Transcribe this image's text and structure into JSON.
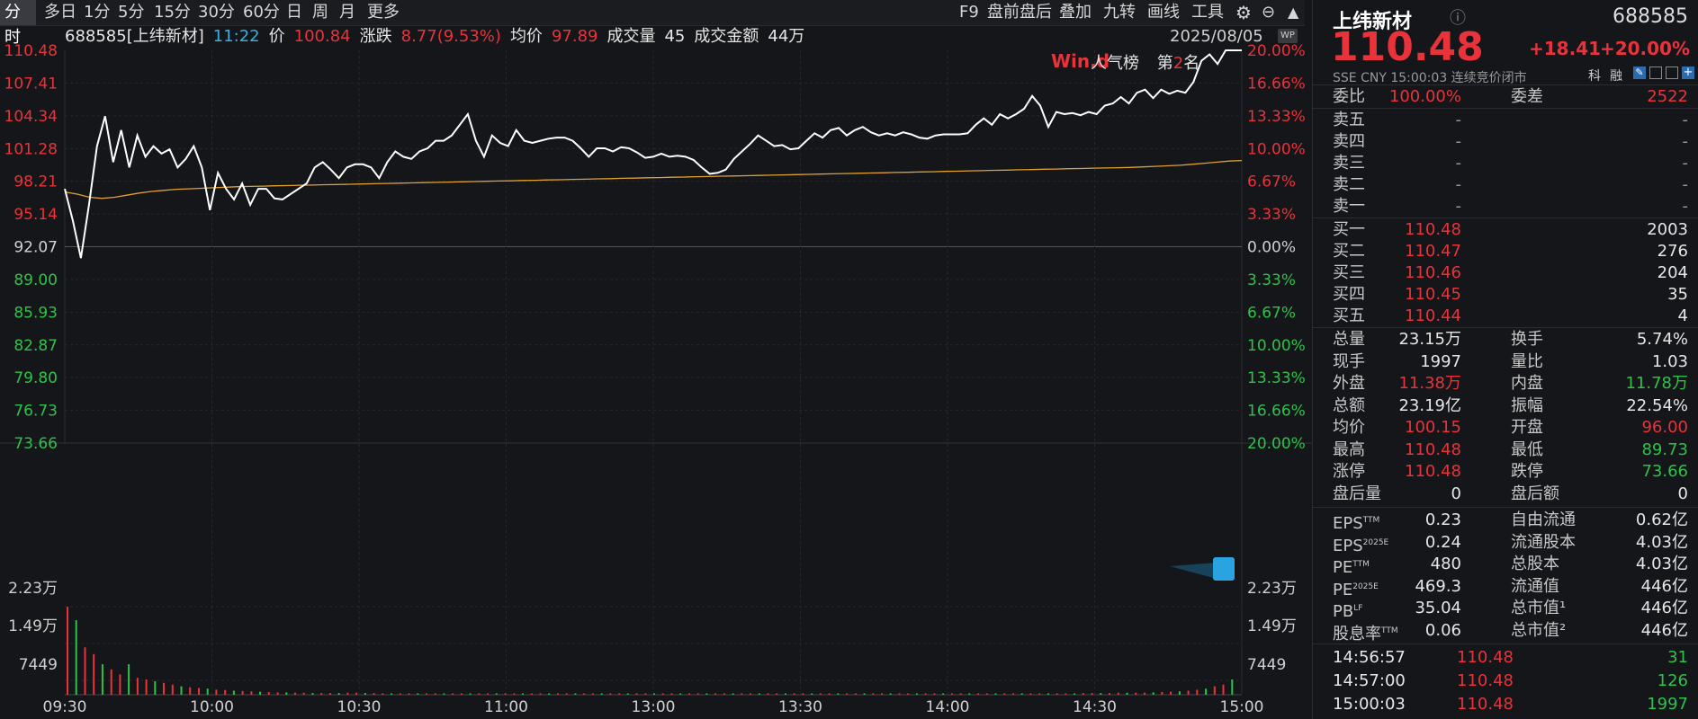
{
  "toolbar": {
    "tabs": [
      "分时",
      "多日",
      "1分",
      "5分",
      "15分",
      "30分",
      "60分",
      "日",
      "周",
      "月",
      "更多"
    ],
    "tools": [
      "F9",
      "盘前盘后",
      "叠加",
      "九转",
      "画线",
      "工具"
    ]
  },
  "info": {
    "code_name": "688585[上纬新材]",
    "time": "11:22",
    "price_label": "价",
    "price": "100.84",
    "change_label": "涨跌",
    "change": "8.77(9.53%)",
    "avg_label": "均价",
    "avg": "97.89",
    "vol_label": "成交量",
    "vol": "45",
    "amt_label": "成交金额",
    "amt": "44万"
  },
  "chart_date": "2025/08/05",
  "popularity": {
    "brand": "Win.d",
    "label": "人气榜",
    "rank_prefix": "第",
    "rank": "2",
    "rank_suffix": "名"
  },
  "chart_data": {
    "type": "line",
    "ylim": [
      73.66,
      110.48
    ],
    "prev_close": 92.07,
    "price_ticks_up": [
      "110.48",
      "107.41",
      "104.34",
      "101.28",
      "98.21",
      "95.14"
    ],
    "price_tick_mid": "92.07",
    "price_ticks_down": [
      "89.00",
      "85.93",
      "82.87",
      "79.80",
      "76.73",
      "73.66"
    ],
    "pct_ticks_up": [
      "20.00%",
      "16.66%",
      "13.33%",
      "10.00%",
      "6.67%",
      "3.33%"
    ],
    "pct_tick_mid": "0.00%",
    "pct_ticks_down": [
      "3.33%",
      "6.67%",
      "10.00%",
      "13.33%",
      "16.66%",
      "20.00%"
    ],
    "volume_ticks": [
      "2.23万",
      "1.49万",
      "7449"
    ],
    "vol_ylim": [
      0,
      30000
    ],
    "x_labels": [
      "09:30",
      "10:00",
      "10:30",
      "11:00",
      "13:00",
      "13:30",
      "14:00",
      "14:30",
      "15:00"
    ],
    "series": [
      {
        "values": [
          97.5,
          94.5,
          91,
          96,
          101.5,
          104.3,
          100,
          103,
          99.5,
          102.5,
          100.5,
          101.5,
          100.8,
          101.2,
          99.5,
          100.3,
          101.5,
          99.5,
          95.5,
          99,
          97.5,
          96.5,
          98,
          96,
          97.5,
          97.5,
          96.6,
          96.5,
          97,
          97.5,
          98,
          99.5,
          100,
          99.3,
          98.5,
          99.5,
          99.8,
          99.8,
          99.5,
          98.5,
          100,
          101,
          100.5,
          100.3,
          101,
          101.3,
          102,
          102,
          102.5,
          103.5,
          104.5,
          102,
          100.5,
          102.5,
          101.8,
          101.5,
          103,
          102,
          101.8,
          102,
          102.2,
          102.3,
          102.3,
          102,
          101.3,
          100.5,
          101.3,
          101.3,
          101,
          101.4,
          101.3,
          100.9,
          100.4,
          100.5,
          100.8,
          100.5,
          100.6,
          100.5,
          100.2,
          99.5,
          98.9,
          99,
          99.3,
          100.3,
          101,
          101.7,
          102.5,
          102,
          101.5,
          101.6,
          101.2,
          101.3,
          102,
          102.7,
          102.3,
          103,
          103.2,
          102.5,
          103,
          103.3,
          102.8,
          102.5,
          102.7,
          102.5,
          102.8,
          102.6,
          102.3,
          102.2,
          102.5,
          102.6,
          102.6,
          102.6,
          102.7,
          103.5,
          104.1,
          103.5,
          104.5,
          104.1,
          104.5,
          105,
          106.2,
          105.3,
          103.3,
          104.7,
          104.5,
          104.6,
          104.4,
          104.7,
          104.5,
          105.3,
          105.5,
          106.1,
          105.5,
          106.5,
          106.8,
          106,
          106.8,
          106.4,
          106.7,
          106.5,
          107.5,
          109.5,
          110.1,
          109.2,
          110.48,
          110.48,
          110.48
        ]
      },
      {
        "values": [
          97.2,
          97.0,
          96.7,
          96.6,
          96.7,
          96.9,
          97.1,
          97.25,
          97.35,
          97.45,
          97.5,
          97.55,
          97.6,
          97.65,
          97.7,
          97.72,
          97.75,
          97.78,
          97.8,
          97.83,
          97.85,
          97.88,
          97.9,
          97.93,
          97.95,
          97.98,
          98.0,
          98.03,
          98.05,
          98.08,
          98.1,
          98.13,
          98.15,
          98.18,
          98.2,
          98.23,
          98.25,
          98.28,
          98.3,
          98.33,
          98.35,
          98.38,
          98.4,
          98.43,
          98.45,
          98.48,
          98.5,
          98.53,
          98.55,
          98.58,
          98.6,
          98.63,
          98.65,
          98.68,
          98.7,
          98.73,
          98.75,
          98.78,
          98.8,
          98.83,
          98.85,
          98.88,
          98.9,
          98.93,
          98.95,
          98.98,
          99.0,
          99.03,
          99.05,
          99.08,
          99.1,
          99.13,
          99.15,
          99.18,
          99.2,
          99.23,
          99.25,
          99.28,
          99.3,
          99.33,
          99.35,
          99.38,
          99.4,
          99.43,
          99.45,
          99.48,
          99.5,
          99.55,
          99.6,
          99.65,
          99.7,
          99.8,
          99.9,
          100.0,
          100.1,
          100.15
        ]
      }
    ],
    "volumes": [
      26000,
      22000,
      14000,
      12000,
      9000,
      7500,
      6000,
      9000,
      5000,
      4500,
      4000,
      3500,
      3000,
      2500,
      2200,
      2000,
      1800,
      1500,
      1400,
      1200,
      1100,
      1000,
      900,
      800,
      700,
      700,
      600,
      600,
      500,
      500,
      500,
      500,
      600,
      600,
      500,
      500,
      400,
      400,
      400,
      400,
      400,
      400,
      400,
      400,
      400,
      400,
      400,
      400,
      400,
      400,
      400,
      400,
      400,
      400,
      400,
      400,
      400,
      400,
      400,
      400,
      400,
      400,
      400,
      400,
      400,
      400,
      400,
      400,
      400,
      400,
      400,
      400,
      400,
      400,
      400,
      400,
      400,
      400,
      400,
      400,
      400,
      400,
      400,
      400,
      400,
      400,
      400,
      400,
      400,
      400,
      400,
      400,
      400,
      400,
      400,
      400,
      400,
      400,
      400,
      400,
      400,
      400,
      400,
      400,
      400,
      400,
      400,
      400,
      400,
      400,
      400,
      400,
      400,
      400,
      400,
      400,
      500,
      500,
      500,
      500,
      600,
      600,
      600,
      600,
      700,
      800,
      900,
      1000,
      1200,
      1500,
      1800,
      2500,
      3000,
      4500
    ]
  },
  "quote": {
    "name": "上纬新材",
    "code": "688585",
    "price": "110.48",
    "change": "+18.41",
    "change_pct": "+20.00%",
    "exchange": "SSE",
    "currency": "CNY",
    "time": "15:00:03",
    "status": "连续竞价闭市",
    "tags": [
      "科",
      "融"
    ]
  },
  "order_ratio": {
    "label1": "委比",
    "value1": "100.00%",
    "label2": "委差",
    "value2": "2522"
  },
  "asks": [
    {
      "label": "卖五",
      "price": "-",
      "vol": "-"
    },
    {
      "label": "卖四",
      "price": "-",
      "vol": "-"
    },
    {
      "label": "卖三",
      "price": "-",
      "vol": "-"
    },
    {
      "label": "卖二",
      "price": "-",
      "vol": "-"
    },
    {
      "label": "卖一",
      "price": "-",
      "vol": "-"
    }
  ],
  "bids": [
    {
      "label": "买一",
      "price": "110.48",
      "vol": "2003"
    },
    {
      "label": "买二",
      "price": "110.47",
      "vol": "276"
    },
    {
      "label": "买三",
      "price": "110.46",
      "vol": "204"
    },
    {
      "label": "买四",
      "price": "110.45",
      "vol": "35"
    },
    {
      "label": "买五",
      "price": "110.44",
      "vol": "4"
    }
  ],
  "stats": [
    {
      "l1": "总量",
      "v1": "23.15万",
      "c1": "white",
      "l2": "换手",
      "v2": "5.74%",
      "c2": "white"
    },
    {
      "l1": "现手",
      "v1": "1997",
      "c1": "white",
      "l2": "量比",
      "v2": "1.03",
      "c2": "white"
    },
    {
      "l1": "外盘",
      "v1": "11.38万",
      "c1": "red",
      "l2": "内盘",
      "v2": "11.78万",
      "c2": "green"
    },
    {
      "l1": "总额",
      "v1": "23.19亿",
      "c1": "white",
      "l2": "振幅",
      "v2": "22.54%",
      "c2": "white"
    },
    {
      "l1": "均价",
      "v1": "100.15",
      "c1": "red",
      "l2": "开盘",
      "v2": "96.00",
      "c2": "red"
    },
    {
      "l1": "最高",
      "v1": "110.48",
      "c1": "red",
      "l2": "最低",
      "v2": "89.73",
      "c2": "green"
    },
    {
      "l1": "涨停",
      "v1": "110.48",
      "c1": "red",
      "l2": "跌停",
      "v2": "73.66",
      "c2": "green"
    },
    {
      "l1": "盘后量",
      "v1": "0",
      "c1": "white",
      "l2": "盘后额",
      "v2": "0",
      "c2": "white"
    }
  ],
  "fundamentals": [
    {
      "l1": "EPS",
      "s1": "TTM",
      "v1": "0.23",
      "l2": "自由流通",
      "v2": "0.62亿"
    },
    {
      "l1": "EPS",
      "s1": "2025E",
      "v1": "0.24",
      "l2": "流通股本",
      "v2": "4.03亿"
    },
    {
      "l1": "PE",
      "s1": "TTM",
      "v1": "480",
      "l2": "总股本",
      "v2": "4.03亿"
    },
    {
      "l1": "PE",
      "s1": "2025E",
      "v1": "469.3",
      "l2": "流通值",
      "v2": "446亿"
    },
    {
      "l1": "PB",
      "s1": "LF",
      "v1": "35.04",
      "l2": "总市值¹",
      "v2": "446亿"
    },
    {
      "l1": "股息率",
      "s1": "TTM",
      "v1": "0.06",
      "l2": "总市值²",
      "v2": "446亿"
    }
  ],
  "ticks": [
    {
      "time": "14:56:57",
      "price": "110.48",
      "vol": "31"
    },
    {
      "time": "14:57:00",
      "price": "110.48",
      "vol": "126"
    },
    {
      "time": "15:00:03",
      "price": "110.48",
      "vol": "1997"
    }
  ],
  "colors": {
    "up": "#e8333a",
    "down": "#2fc24a",
    "price_line": "#ffffff",
    "avg_line": "#e0a030",
    "bg": "#15161a"
  }
}
